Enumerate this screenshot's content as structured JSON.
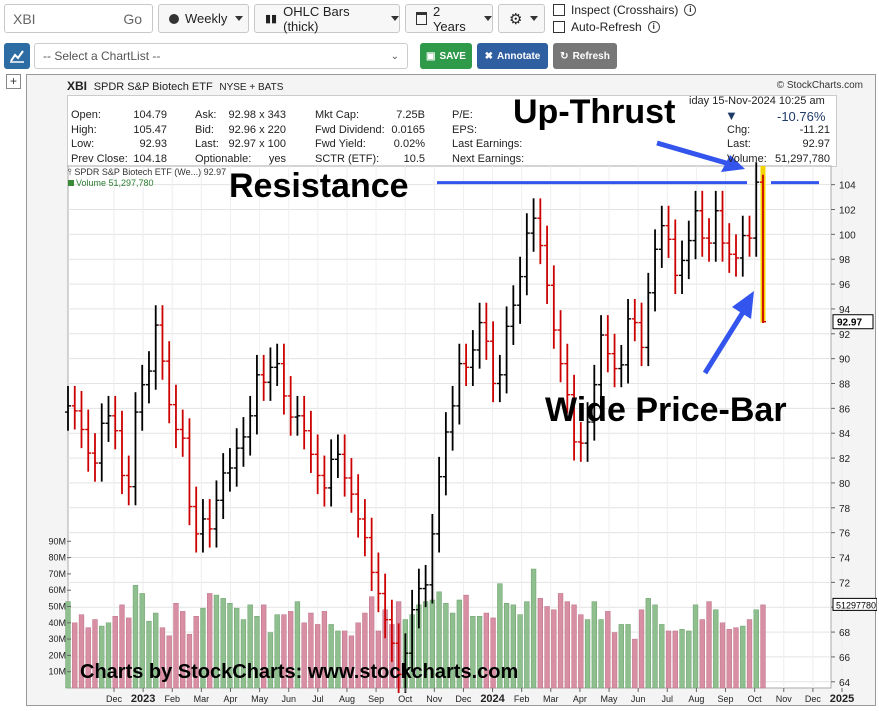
{
  "toolbar": {
    "symbol": "XBI",
    "go_label": "Go",
    "period": "Weekly",
    "chart_type": "OHLC Bars (thick)",
    "range": "2 Years",
    "inspect_label": "Inspect (Crosshairs)",
    "autorefresh_label": "Auto-Refresh"
  },
  "actions": {
    "chartlist_placeholder": "-- Select a ChartList --",
    "save_label": "SAVE",
    "annotate_label": "Annotate",
    "refresh_label": "Refresh",
    "plus_label": "+"
  },
  "header": {
    "symbol": "XBI",
    "name": "SPDR S&P Biotech ETF",
    "exchange": "NYSE + BATS",
    "source": "© StockCharts.com",
    "date": "Friday 15-Nov-2024 10:25 am",
    "date_visible": "iday  15-Nov-2024  10:25 am",
    "change_pct": "-10.76%",
    "change_arrow": "▼"
  },
  "stats": {
    "col1": [
      {
        "label": "Open:",
        "value": "104.79"
      },
      {
        "label": "High:",
        "value": "105.47"
      },
      {
        "label": "Low:",
        "value": "92.93"
      },
      {
        "label": "Prev Close:",
        "value": "104.18"
      }
    ],
    "col2": [
      {
        "label": "Ask:",
        "value": "92.98 x 343"
      },
      {
        "label": "Bid:",
        "value": "92.96 x 220"
      },
      {
        "label": "Last:",
        "value": "92.97 x 100"
      },
      {
        "label": "Optionable:",
        "value": "yes"
      }
    ],
    "col3": [
      {
        "label": "Mkt Cap:",
        "value": "7.25B"
      },
      {
        "label": "Fwd Dividend:",
        "value": "0.0165"
      },
      {
        "label": "Fwd Yield:",
        "value": "0.02%"
      },
      {
        "label": "SCTR (ETF):",
        "value": "10.5"
      }
    ],
    "col4": [
      {
        "label": "P/E:",
        "value": ""
      },
      {
        "label": "EPS:",
        "value": ""
      },
      {
        "label": "Last Earnings:",
        "value": ""
      },
      {
        "label": "Next Earnings:",
        "value": ""
      }
    ],
    "col5": [
      {
        "label": "Chg:",
        "value": "-11.21"
      },
      {
        "label": "Last:",
        "value": "92.97"
      },
      {
        "label": "Volume:",
        "value": "51,297,780"
      }
    ]
  },
  "legend": {
    "price": "SPDR S&P Biotech ETF (We...) 92.97",
    "volume": "Volume 51,297,780"
  },
  "annotations": {
    "up_thrust": "Up-Thrust",
    "resistance": "Resistance",
    "wide_bar": "Wide Price-Bar",
    "watermark": "Charts by StockCharts:  www.stockcharts.com"
  },
  "colors": {
    "up_bar": "#000000",
    "down_bar": "#cc0000",
    "vol_up": "#8fbf8f",
    "vol_down": "#d88fa4",
    "annotation_blue": "#3355ee",
    "highlight_yellow": "#f5d300",
    "plot_bg": "#ffffff"
  },
  "chart_data": {
    "type": "ohlc",
    "period": "weekly",
    "x_tick_labels": [
      "Dec",
      "2023",
      "Feb",
      "Mar",
      "Apr",
      "May",
      "Jun",
      "Jul",
      "Aug",
      "Sep",
      "Oct",
      "Nov",
      "Dec",
      "2024",
      "Feb",
      "Mar",
      "Apr",
      "May",
      "Jun",
      "Jul",
      "Aug",
      "Sep",
      "Oct",
      "Nov",
      "Dec",
      "2025"
    ],
    "y_ticks": [
      64,
      66,
      68,
      70,
      72,
      74,
      76,
      78,
      80,
      82,
      84,
      86,
      88,
      90,
      92,
      94,
      96,
      98,
      100,
      102,
      104
    ],
    "ylim": [
      63.5,
      105.5
    ],
    "volume_ticks": [
      "10M",
      "20M",
      "30M",
      "40M",
      "50M",
      "60M",
      "70M",
      "80M",
      "90M"
    ],
    "volume_ylim_millions": [
      0,
      100
    ],
    "last_price_label": "92.97",
    "last_volume_label": "51297780",
    "resistance_level": 104,
    "close": [
      86.2,
      85.8,
      84.3,
      82.4,
      81.6,
      84.8,
      85.4,
      84.2,
      80.6,
      79.7,
      85.7,
      87.9,
      89.0,
      92.7,
      89.8,
      86.3,
      84.3,
      83.6,
      78.1,
      75.9,
      77.1,
      76.3,
      78.6,
      80.8,
      81.2,
      82.8,
      83.7,
      85.4,
      88.7,
      88.1,
      89.3,
      89.6,
      87.0,
      85.3,
      85.4,
      84.2,
      82.3,
      80.6,
      79.6,
      81.9,
      82.3,
      80.4,
      79.1,
      77.1,
      75.6,
      72.8,
      71.1,
      69.0,
      67.1,
      64.6,
      66.3,
      69.8,
      71.5,
      71.8,
      75.9,
      80.5,
      84.1,
      86.2,
      89.6,
      89.3,
      90.7,
      92.9,
      91.4,
      88.0,
      88.7,
      92.6,
      94.3,
      96.6,
      100.1,
      101.3,
      99.1,
      95.9,
      92.3,
      89.6,
      87.1,
      83.3,
      83.2,
      84.9,
      87.9,
      91.9,
      90.4,
      89.2,
      89.5,
      93.2,
      92.9,
      90.9,
      95.3,
      98.8,
      100.7,
      99.6,
      96.7,
      97.9,
      99.5,
      101.9,
      99.7,
      99.3,
      101.9,
      99.3,
      98.4,
      98.1,
      99.9,
      99.7,
      104.2,
      92.97
    ],
    "volume_millions": [
      53,
      40,
      45,
      37,
      42,
      38,
      40,
      44,
      51,
      43,
      63,
      58,
      41,
      46,
      37,
      32,
      52,
      47,
      33,
      44,
      49,
      58,
      57,
      55,
      52,
      49,
      42,
      51,
      44,
      51,
      34,
      45,
      45,
      47,
      53,
      40,
      46,
      39,
      47,
      39,
      35,
      35,
      32,
      40,
      46,
      56,
      35,
      48,
      39,
      53,
      42,
      45,
      51,
      53,
      54,
      59,
      52,
      46,
      54,
      57,
      44,
      44,
      46,
      43,
      64,
      52,
      51,
      45,
      53,
      73,
      55,
      50,
      48,
      58,
      53,
      51,
      45,
      42,
      53,
      42,
      47,
      34,
      39,
      39,
      30,
      48,
      55,
      51,
      39,
      35,
      35,
      36,
      35,
      51,
      42,
      53,
      48,
      40,
      36,
      37,
      38,
      42,
      48,
      51
    ]
  }
}
